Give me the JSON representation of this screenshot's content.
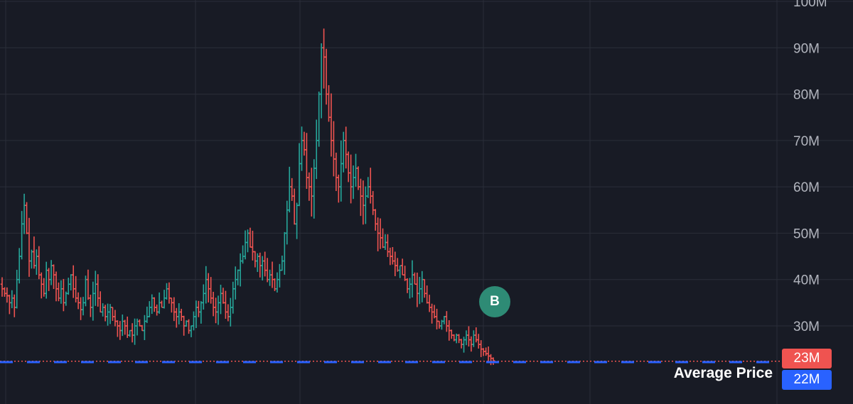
{
  "colors": {
    "background": "#181b25",
    "grid": "#2a2e39",
    "up": "#26a69a",
    "down": "#ef5350",
    "average_line": "#2962ff",
    "last_price_line": "#ef5350",
    "marker": "#2e8b75",
    "axis_text": "#b2b5be"
  },
  "labels": {
    "average_price": "Average Price",
    "last_price": "23M",
    "average_value": "22M",
    "marker": "B"
  },
  "chart_data": {
    "type": "ohlc",
    "y_ticks": [
      "100M",
      "90M",
      "80M",
      "70M",
      "60M",
      "50M",
      "40M",
      "30M"
    ],
    "y_tick_values": [
      100,
      90,
      80,
      70,
      60,
      50,
      40,
      30
    ],
    "y_range": [
      15,
      100
    ],
    "last_price": 23,
    "average_price": 22,
    "marker": {
      "label": "B",
      "bar_index": 203,
      "price": 35
    },
    "series_close": [
      38.0,
      37.0,
      36.5,
      35.0,
      36.0,
      34.0,
      40.0,
      45.0,
      52.0,
      56.0,
      50.0,
      44.0,
      46.0,
      43.0,
      45.0,
      41.0,
      39.0,
      37.0,
      42.0,
      40.0,
      43.0,
      41.0,
      38.0,
      36.0,
      38.0,
      35.0,
      37.0,
      39.0,
      41.0,
      38.0,
      36.0,
      35.0,
      33.5,
      35.0,
      40.0,
      36.0,
      34.0,
      37.0,
      39.0,
      36.0,
      33.0,
      34.0,
      32.0,
      33.0,
      34.0,
      32.0,
      31.0,
      30.0,
      29.0,
      31.0,
      30.0,
      28.0,
      29.0,
      28.0,
      30.0,
      31.0,
      30.0,
      29.0,
      31.0,
      32.0,
      34.0,
      36.0,
      34.0,
      33.0,
      35.0,
      34.0,
      36.0,
      38.0,
      36.0,
      35.0,
      33.0,
      32.0,
      33.0,
      32.0,
      30.0,
      31.0,
      29.0,
      30.0,
      32.0,
      34.0,
      33.0,
      35.0,
      37.0,
      40.0,
      38.0,
      36.0,
      34.0,
      33.0,
      35.0,
      37.0,
      35.0,
      33.0,
      32.0,
      34.0,
      38.0,
      40.0,
      42.0,
      44.0,
      45.0,
      48.0,
      50.0,
      47.0,
      46.0,
      44.0,
      45.0,
      43.0,
      44.0,
      42.0,
      40.0,
      41.0,
      40.0,
      38.0,
      40.0,
      42.0,
      44.0,
      50.0,
      55.0,
      60.0,
      58.0,
      52.0,
      56.0,
      65.0,
      70.0,
      68.0,
      62.0,
      60.0,
      58.0,
      64.0,
      70.0,
      80.0,
      90.0,
      88.0,
      80.0,
      75.0,
      70.0,
      66.0,
      62.0,
      60.0,
      65.0,
      70.0,
      67.0,
      63.0,
      60.0,
      62.0,
      64.0,
      60.0,
      58.0,
      56.0,
      58.0,
      60.0,
      58.0,
      55.0,
      52.0,
      50.0,
      49.0,
      47.0,
      48.0,
      46.0,
      45.0,
      44.0,
      43.0,
      42.0,
      43.0,
      41.0,
      40.0,
      38.0,
      39.0,
      41.0,
      39.0,
      37.0,
      38.0,
      40.0,
      37.0,
      35.0,
      34.0,
      33.0,
      32.0,
      31.0,
      30.0,
      31.0,
      32.0,
      30.0,
      29.0,
      28.0,
      27.0,
      28.0,
      27.0,
      26.0,
      27.0,
      28.0,
      27.0,
      26.0,
      28.0,
      27.0,
      26.0,
      25.0,
      24.5,
      24.0,
      23.5,
      23.0,
      22.5
    ]
  }
}
